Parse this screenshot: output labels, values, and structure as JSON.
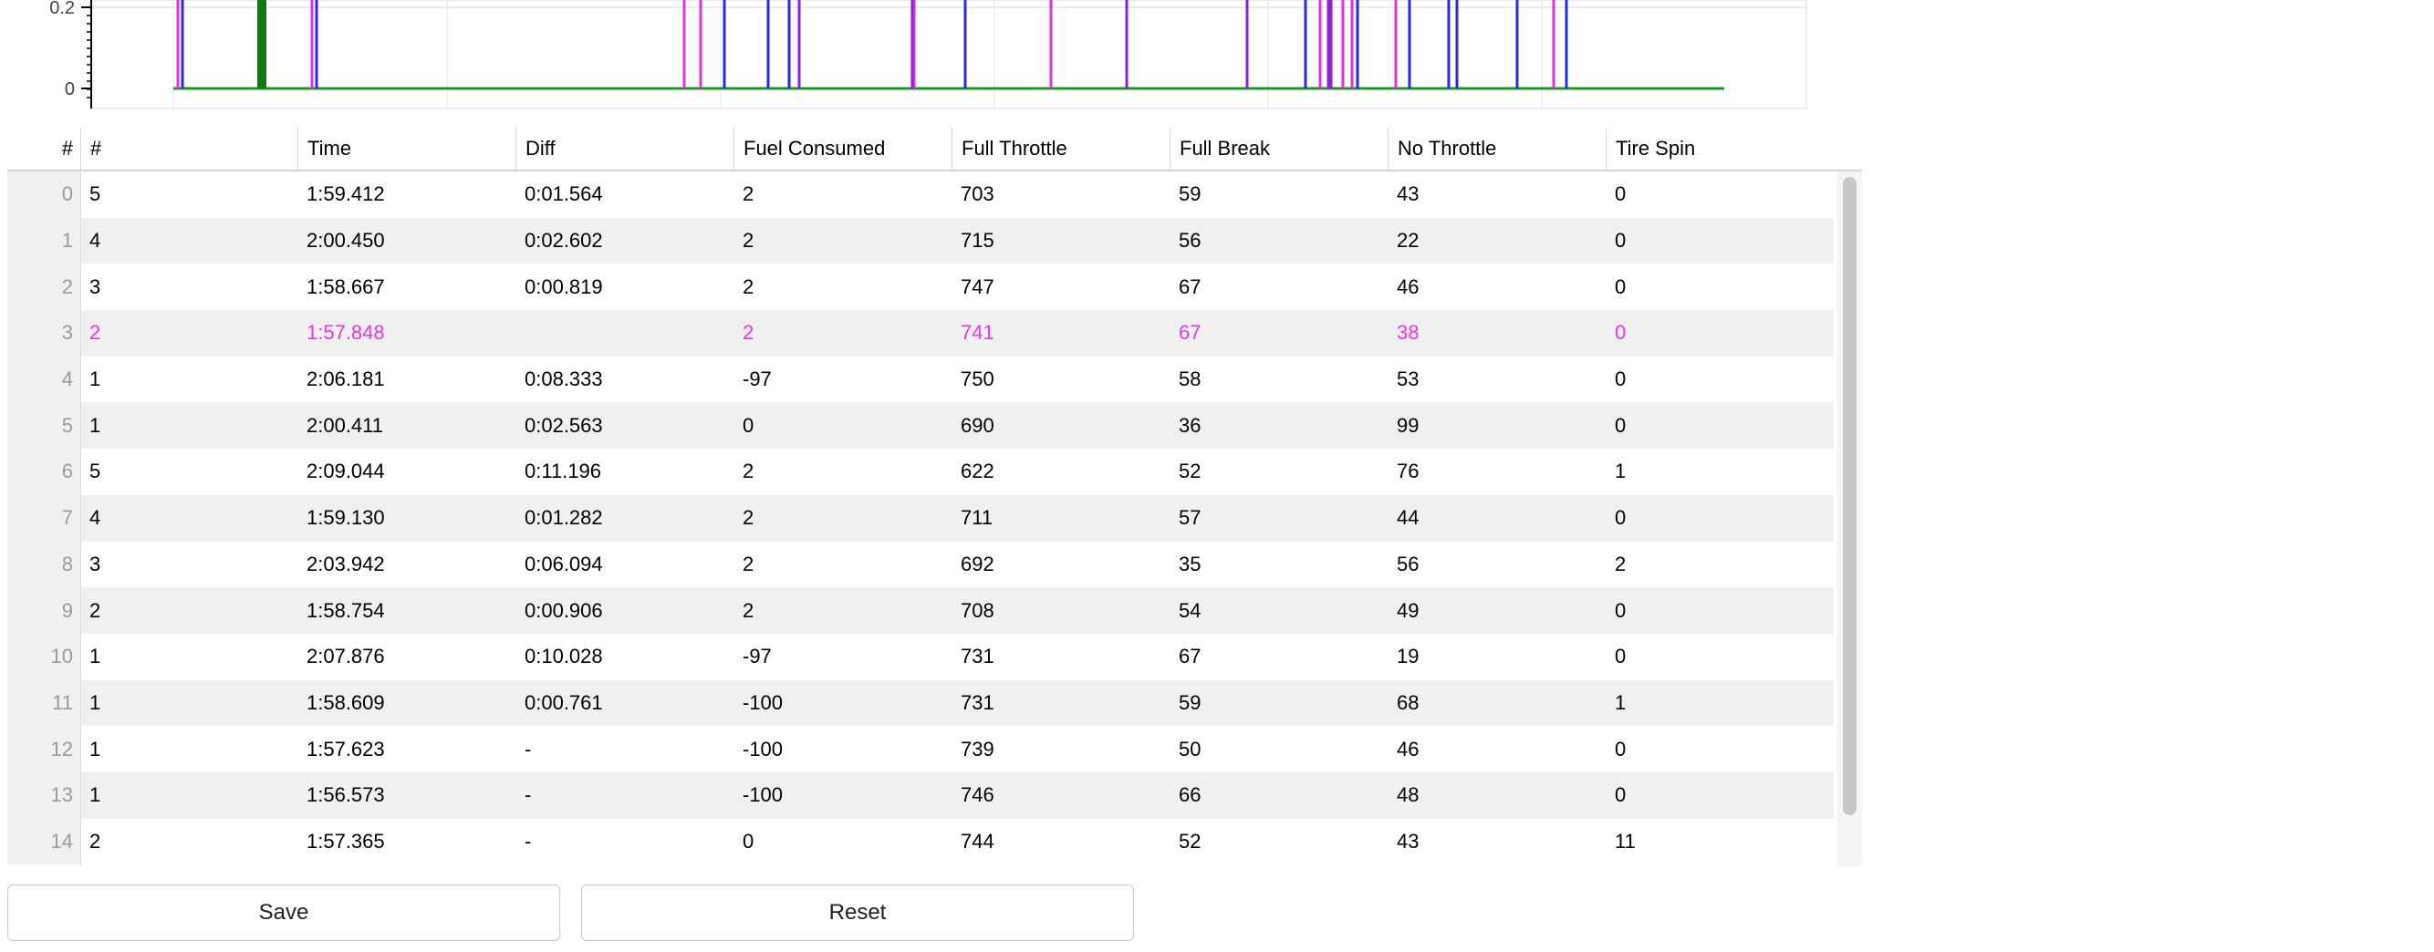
{
  "chart_data": {
    "type": "bar",
    "y_tick_labels": [
      "0.2",
      "0"
    ],
    "ylim": [
      0,
      0.22
    ],
    "colors": {
      "magenta": "#dd33dd",
      "blue": "#2a2ae0",
      "purple": "#9020d8",
      "green": "#1a9a1a",
      "dark_green": "#127a12"
    },
    "series": [
      {
        "color": "magenta",
        "events": [
          195,
          342,
          750,
          768,
          1002,
          1152,
          1447,
          1472,
          1482,
          1530,
          1703
        ]
      },
      {
        "color": "blue",
        "events": [
          200,
          347,
          794,
          842,
          865,
          1058,
          1235,
          1431,
          1488,
          1545,
          1588,
          1597,
          1663,
          1717
        ]
      },
      {
        "color": "purple",
        "events": [
          876,
          1000,
          1235,
          1367,
          1456,
          1459
        ]
      },
      {
        "color": "dark_green",
        "events": [
          287
        ]
      }
    ]
  },
  "table": {
    "columns": [
      "#",
      "#",
      "Time",
      "Diff",
      "Fuel Consumed",
      "Full Throttle",
      "Full Break",
      "No Throttle",
      "Tire Spin"
    ],
    "highlight_color": "#ee33ee",
    "rows": [
      {
        "idx": "0",
        "cells": [
          "5",
          "1:59.412",
          "0:01.564",
          "2",
          "703",
          "59",
          "43",
          "0"
        ]
      },
      {
        "idx": "1",
        "cells": [
          "4",
          "2:00.450",
          "0:02.602",
          "2",
          "715",
          "56",
          "22",
          "0"
        ]
      },
      {
        "idx": "2",
        "cells": [
          "3",
          "1:58.667",
          "0:00.819",
          "2",
          "747",
          "67",
          "46",
          "0"
        ]
      },
      {
        "idx": "3",
        "cells": [
          "2",
          "1:57.848",
          "",
          "2",
          "741",
          "67",
          "38",
          "0"
        ],
        "highlight": true
      },
      {
        "idx": "4",
        "cells": [
          "1",
          "2:06.181",
          "0:08.333",
          "-97",
          "750",
          "58",
          "53",
          "0"
        ]
      },
      {
        "idx": "5",
        "cells": [
          "1",
          "2:00.411",
          "0:02.563",
          "0",
          "690",
          "36",
          "99",
          "0"
        ]
      },
      {
        "idx": "6",
        "cells": [
          "5",
          "2:09.044",
          "0:11.196",
          "2",
          "622",
          "52",
          "76",
          "1"
        ]
      },
      {
        "idx": "7",
        "cells": [
          "4",
          "1:59.130",
          "0:01.282",
          "2",
          "711",
          "57",
          "44",
          "0"
        ]
      },
      {
        "idx": "8",
        "cells": [
          "3",
          "2:03.942",
          "0:06.094",
          "2",
          "692",
          "35",
          "56",
          "2"
        ]
      },
      {
        "idx": "9",
        "cells": [
          "2",
          "1:58.754",
          "0:00.906",
          "2",
          "708",
          "54",
          "49",
          "0"
        ]
      },
      {
        "idx": "10",
        "cells": [
          "1",
          "2:07.876",
          "0:10.028",
          "-97",
          "731",
          "67",
          "19",
          "0"
        ]
      },
      {
        "idx": "11",
        "cells": [
          "1",
          "1:58.609",
          "0:00.761",
          "-100",
          "731",
          "59",
          "68",
          "1"
        ]
      },
      {
        "idx": "12",
        "cells": [
          "1",
          "1:57.623",
          "-",
          "-100",
          "739",
          "50",
          "46",
          "0"
        ]
      },
      {
        "idx": "13",
        "cells": [
          "1",
          "1:56.573",
          "-",
          "-100",
          "746",
          "66",
          "48",
          "0"
        ]
      },
      {
        "idx": "14",
        "cells": [
          "2",
          "1:57.365",
          "-",
          "0",
          "744",
          "52",
          "43",
          "11"
        ]
      }
    ]
  },
  "buttons": {
    "save_label": "Save",
    "reset_label": "Reset"
  }
}
